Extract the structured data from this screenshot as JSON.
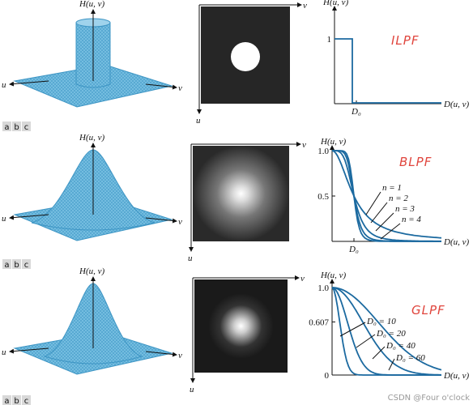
{
  "rows": [
    {
      "surface": {
        "h": "H(u, v)",
        "u": "u",
        "v": "v"
      },
      "image": {
        "u": "u",
        "v": "v"
      },
      "plot": {
        "y_label": "H(u, v)",
        "x_label": "D(u, v)",
        "tag": "ILPF",
        "y_ticks": [
          "1"
        ],
        "x_ticks": [
          "D₀"
        ],
        "curve_labels": []
      },
      "panel_labels": [
        "a",
        "b",
        "c"
      ]
    },
    {
      "surface": {
        "h": "H(u, v)",
        "u": "u",
        "v": "v"
      },
      "image": {
        "u": "u",
        "v": "v"
      },
      "plot": {
        "y_label": "H(u, v)",
        "x_label": "D(u, v)",
        "tag": "BLPF",
        "y_ticks": [
          "1.0",
          "0.5"
        ],
        "x_ticks": [
          "D₀"
        ],
        "curve_labels": [
          "n = 1",
          "n = 2",
          "n = 3",
          "n = 4"
        ]
      },
      "panel_labels": [
        "a",
        "b",
        "c"
      ]
    },
    {
      "surface": {
        "h": "H(u, v)",
        "u": "u",
        "v": "v"
      },
      "image": {
        "u": "u",
        "v": "v"
      },
      "plot": {
        "y_label": "H(u, v)",
        "x_label": "D(u, v)",
        "tag": "GLPF",
        "y_ticks": [
          "1.0",
          "0.607",
          "0"
        ],
        "x_ticks": [],
        "curve_labels": [
          "D₀ = 10",
          "D₀ = 20",
          "D₀ = 40",
          "D₀ = 60"
        ]
      },
      "panel_labels": [
        "a",
        "b",
        "c"
      ]
    }
  ],
  "watermark": "CSDN @Four o'clock"
}
